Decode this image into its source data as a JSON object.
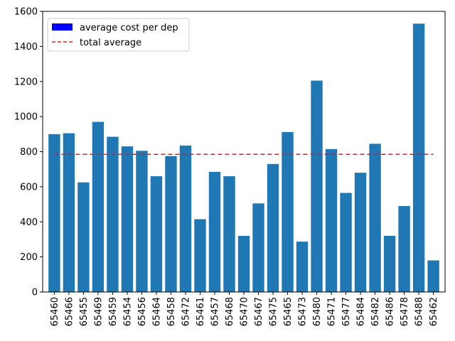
{
  "chart_data": {
    "type": "bar",
    "categories": [
      "65460",
      "65466",
      "65455",
      "65469",
      "65459",
      "65454",
      "65456",
      "65464",
      "65458",
      "65472",
      "65461",
      "65457",
      "65468",
      "65470",
      "65467",
      "65475",
      "65465",
      "65473",
      "65480",
      "65471",
      "65477",
      "65484",
      "65482",
      "65486",
      "65478",
      "65488",
      "65462"
    ],
    "values": [
      900,
      905,
      625,
      970,
      885,
      830,
      805,
      660,
      775,
      835,
      415,
      685,
      660,
      320,
      505,
      730,
      912,
      287,
      1205,
      815,
      565,
      680,
      845,
      320,
      490,
      1530,
      180
    ],
    "reference_line": {
      "value": 785,
      "style": "dashed",
      "color": "#e31a1c"
    },
    "ylim": [
      0,
      1600
    ],
    "yticks": [
      0,
      200,
      400,
      600,
      800,
      1000,
      1200,
      1400,
      1600
    ],
    "ytick_labels": [
      "0",
      "200",
      "400",
      "600",
      "800",
      "1000",
      "1200",
      "1400",
      "1600"
    ],
    "bar_color": "#1f77b4",
    "legend": {
      "placement": "top-left",
      "entries": [
        {
          "label": "average cost per dep",
          "kind": "patch",
          "color": "#0000ff"
        },
        {
          "label": "total average",
          "kind": "dashed-line",
          "color": "#e31a1c"
        }
      ]
    },
    "grid": false
  }
}
